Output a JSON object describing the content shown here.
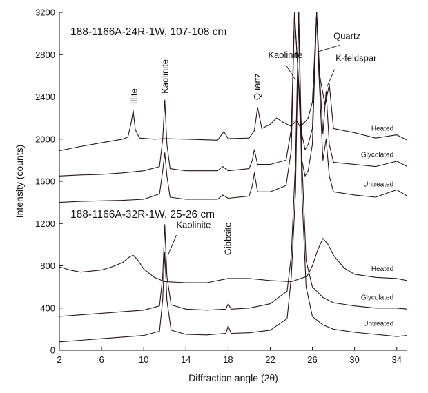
{
  "chart_data": {
    "type": "line",
    "xlabel": "Diffraction angle (2θ)",
    "ylabel": "Intensity (counts)",
    "xlim": [
      2,
      35
    ],
    "ylim": [
      0,
      3200
    ],
    "xticks": [
      2,
      6,
      10,
      14,
      18,
      22,
      26,
      30,
      34
    ],
    "yticks": [
      0,
      400,
      800,
      1200,
      1600,
      2000,
      2400,
      2800,
      3200
    ],
    "grid": false,
    "legend": "none",
    "colors": {
      "trace": "#2a1414",
      "axis": "#111111"
    },
    "panels": [
      {
        "title": "188-1166A-24R-1W, 107-108 cm",
        "peak_labels": [
          {
            "text": "Illite",
            "x": 8.9
          },
          {
            "text": "Kaolinite",
            "x": 12.0
          },
          {
            "text": "Quartz",
            "x": 20.8
          },
          {
            "text": "Kaolinite",
            "x": 23.0
          },
          {
            "text": "Quartz",
            "x": 28.9
          },
          {
            "text": "K-feldspar",
            "x": 29.4
          }
        ],
        "series": [
          {
            "name": "Heated",
            "x": [
              2,
              4,
              6,
              8,
              8.5,
              8.8,
              9.0,
              9.2,
              9.6,
              11,
              12,
              14,
              17,
              17.6,
              18,
              20,
              20.5,
              20.8,
              21.2,
              22,
              22.6,
              23.2,
              24,
              24.5,
              24.8,
              25.2,
              25.6,
              26,
              26.4,
              26.7,
              27.2,
              27.6,
              28,
              30,
              32,
              34,
              35
            ],
            "y": [
              1890,
              1930,
              1965,
              2000,
              2020,
              2150,
              2270,
              2090,
              2010,
              2000,
              2005,
              2000,
              1990,
              2070,
              2005,
              2010,
              2080,
              2300,
              2100,
              2140,
              2200,
              2160,
              2120,
              2180,
              2120,
              2150,
              2200,
              2350,
              3200,
              2600,
              2320,
              2520,
              2100,
              2060,
              2010,
              2040,
              1990
            ]
          },
          {
            "name": "Glycolated",
            "x": [
              2,
              4,
              6,
              8,
              10,
              11.5,
              11.8,
              12.0,
              12.2,
              12.5,
              14,
              17,
              17.5,
              18,
              20,
              20.3,
              20.5,
              20.8,
              22,
              23.5,
              24.0,
              24.3,
              24.6,
              25.0,
              25.3,
              25.6,
              26,
              26.4,
              26.6,
              27.0,
              27.3,
              27.6,
              28,
              30,
              32,
              34,
              35
            ],
            "y": [
              1650,
              1660,
              1665,
              1680,
              1700,
              1740,
              2000,
              2370,
              1950,
              1720,
              1700,
              1700,
              1740,
              1700,
              1720,
              1800,
              1900,
              1760,
              1760,
              1800,
              2100,
              3200,
              2700,
              2050,
              1900,
              1950,
              2100,
              3200,
              2750,
              2050,
              2450,
              1950,
              1780,
              1760,
              1740,
              1790,
              1740
            ]
          },
          {
            "name": "Untreated",
            "x": [
              2,
              4,
              6,
              8,
              10,
              11.5,
              11.8,
              12.0,
              12.2,
              12.5,
              14,
              17,
              17.5,
              18,
              20,
              20.3,
              20.5,
              20.8,
              22,
              23.5,
              24.0,
              24.3,
              24.6,
              25.0,
              25.3,
              25.6,
              26,
              26.4,
              26.6,
              27.0,
              27.3,
              27.6,
              28,
              30,
              32,
              34,
              35
            ],
            "y": [
              1400,
              1410,
              1415,
              1420,
              1430,
              1480,
              1700,
              1870,
              1650,
              1450,
              1430,
              1430,
              1470,
              1440,
              1460,
              1560,
              1680,
              1500,
              1500,
              1560,
              1900,
              3200,
              2700,
              1800,
              1650,
              1700,
              1950,
              3200,
              2650,
              1800,
              2000,
              1650,
              1500,
              1470,
              1450,
              1520,
              1460
            ]
          }
        ]
      },
      {
        "title": "188-1166A-32R-1W, 25-26 cm",
        "peak_labels": [
          {
            "text": "Kaolinite",
            "x": 13.5
          },
          {
            "text": "Gibbsite",
            "x": 18.3
          }
        ],
        "series": [
          {
            "name": "Heated",
            "x": [
              2,
              3,
              4,
              6,
              7,
              8,
              8.6,
              9.0,
              9.4,
              10,
              11,
              12,
              14,
              16,
              18,
              20,
              22,
              24,
              25.5,
              26,
              26.5,
              27,
              27.5,
              28,
              29,
              30,
              32,
              34,
              35
            ],
            "y": [
              790,
              760,
              740,
              760,
              790,
              830,
              880,
              900,
              860,
              770,
              690,
              650,
              640,
              640,
              680,
              680,
              660,
              650,
              700,
              800,
              950,
              1060,
              1000,
              900,
              780,
              720,
              690,
              680,
              660
            ]
          },
          {
            "name": "Glycolated",
            "x": [
              2,
              4,
              6,
              8,
              10,
              11.5,
              11.8,
              12.0,
              12.2,
              12.6,
              14,
              16,
              17.8,
              18,
              18.3,
              20,
              22,
              23.6,
              24.0,
              24.4,
              24.7,
              25.0,
              25.4,
              26,
              27,
              28,
              30,
              32,
              34,
              35
            ],
            "y": [
              320,
              335,
              350,
              365,
              380,
              420,
              700,
              1190,
              700,
              430,
              390,
              380,
              390,
              440,
              390,
              400,
              440,
              560,
              900,
              1800,
              3200,
              1800,
              850,
              600,
              500,
              450,
              420,
              400,
              400,
              390
            ]
          },
          {
            "name": "Untreated",
            "x": [
              2,
              4,
              6,
              8,
              10,
              11.5,
              11.8,
              12.0,
              12.2,
              12.6,
              14,
              16,
              17.8,
              18,
              18.3,
              20,
              22,
              23.6,
              24.0,
              24.4,
              24.7,
              25.0,
              25.4,
              26,
              27,
              28,
              30,
              32,
              34,
              35
            ],
            "y": [
              80,
              95,
              110,
              125,
              140,
              180,
              480,
              930,
              470,
              190,
              150,
              145,
              160,
              230,
              160,
              165,
              190,
              300,
              700,
              1500,
              3200,
              1500,
              600,
              320,
              240,
              200,
              170,
              150,
              130,
              140
            ]
          }
        ]
      }
    ]
  }
}
